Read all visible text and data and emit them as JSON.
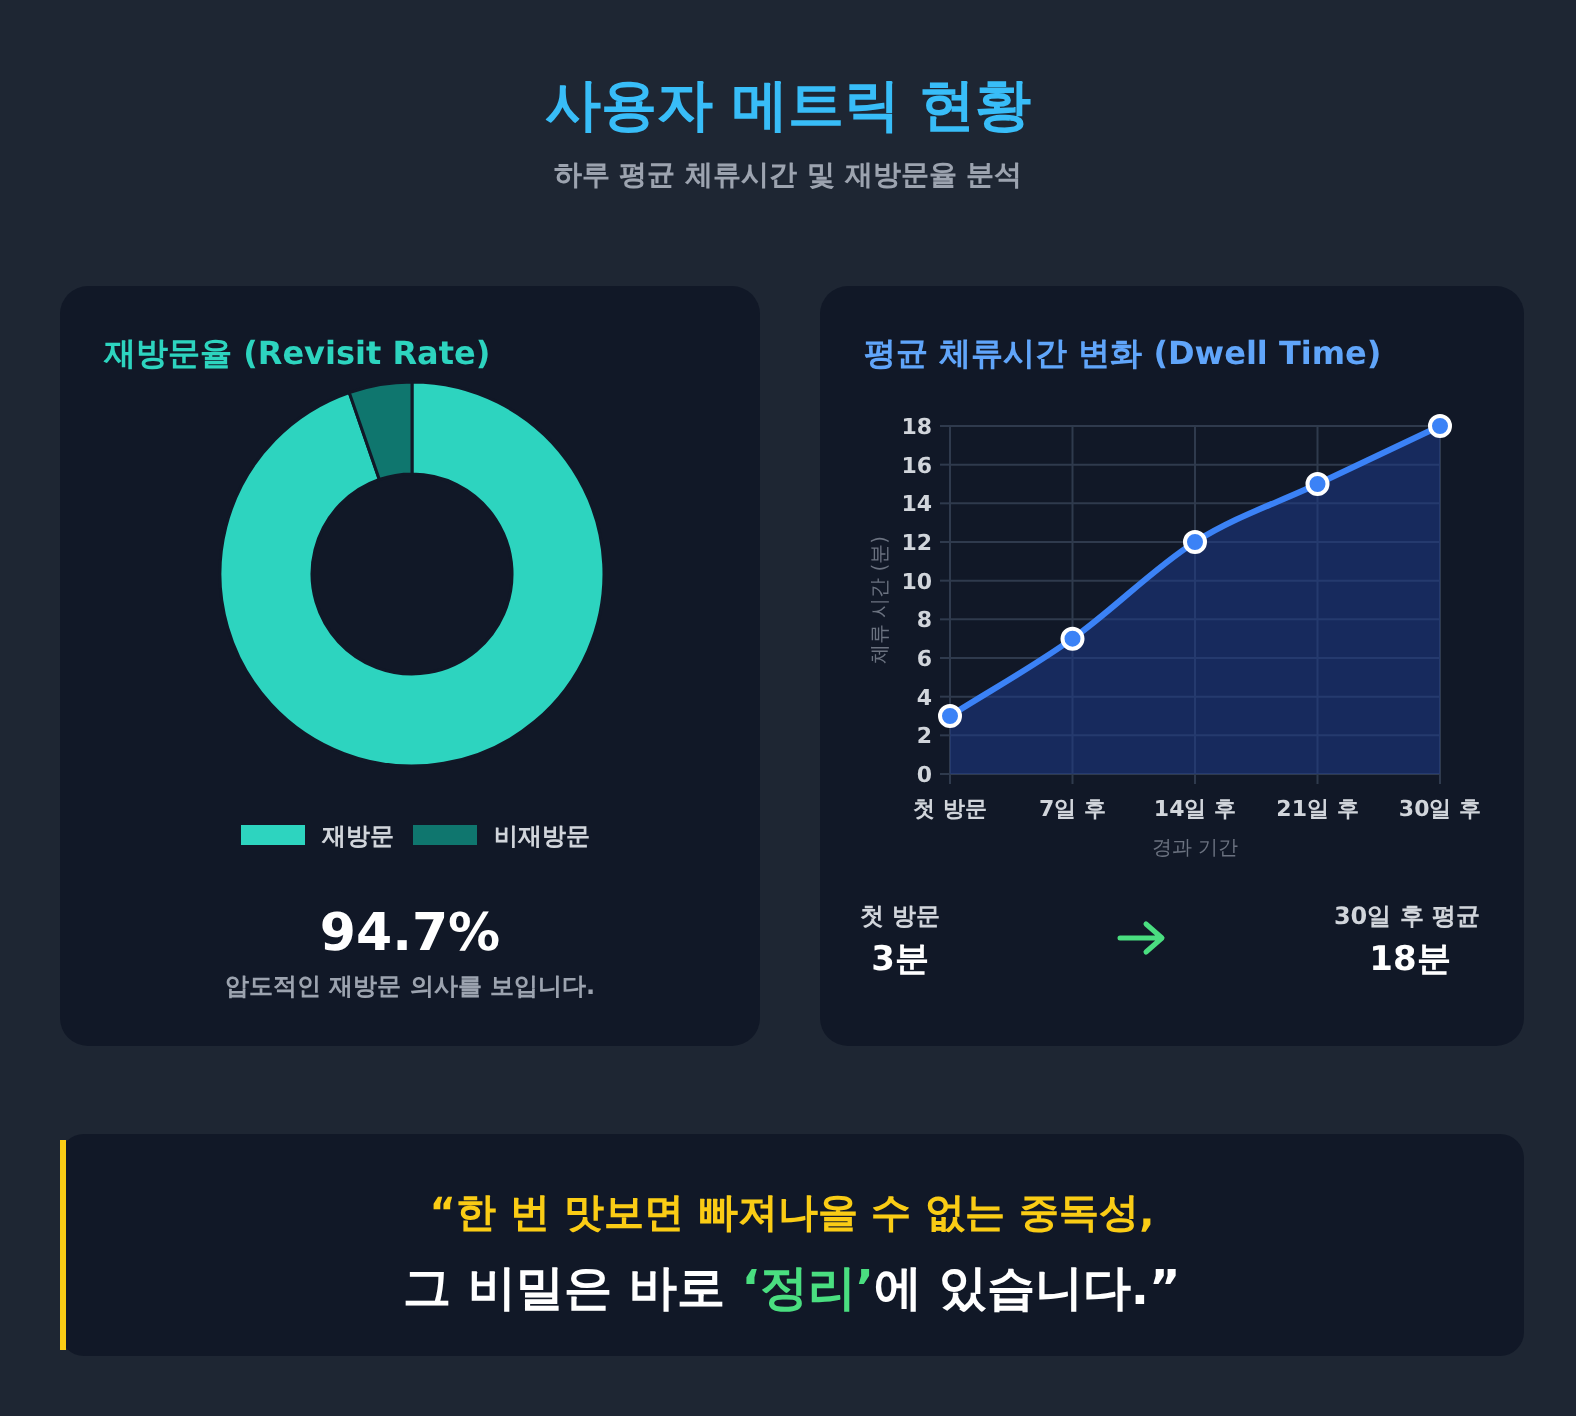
{
  "chart_data": [
    {
      "type": "other",
      "title": "사용자 메트릭 현황",
      "subtitle": "하루 평균 체류시간 및 재방문율 분석"
    },
    {
      "type": "donut",
      "title": "재방문율 (Revisit Rate)",
      "categories": [
        "재방문",
        "비재방문"
      ],
      "values": [
        94.7,
        5.3
      ],
      "colors": [
        "#2dd4bf",
        "#0f766e"
      ],
      "legend": "bottom",
      "annotations": [
        "94.7%",
        "압도적인 재방문 의사를 보입니다."
      ]
    },
    {
      "type": "area",
      "title": "평균 체류시간 변화 (Dwell Time)",
      "xlabel": "경과 기간",
      "ylabel": "체류 시간 (분)",
      "categories": [
        "첫 방문",
        "7일 후",
        "14일 후",
        "21일 후",
        "30일 후"
      ],
      "series": [
        {
          "color": "#3b82f6",
          "values": [
            3,
            7,
            12,
            15,
            18
          ]
        }
      ],
      "ylim": [
        0,
        18
      ],
      "yticks": [
        0,
        2,
        4,
        6,
        8,
        10,
        12,
        14,
        16,
        18
      ],
      "grid": true,
      "marker": "circle",
      "annotations": [
        "첫 방문",
        "3분",
        "30일 후 평균",
        "18분"
      ]
    },
    {
      "type": "other",
      "annotations": [
        "“한 번 맛보면 빠져나올 수 없는 중독성,",
        "그 비밀은 바로 ",
        "‘정리’",
        "에 있습니다.”"
      ]
    }
  ]
}
